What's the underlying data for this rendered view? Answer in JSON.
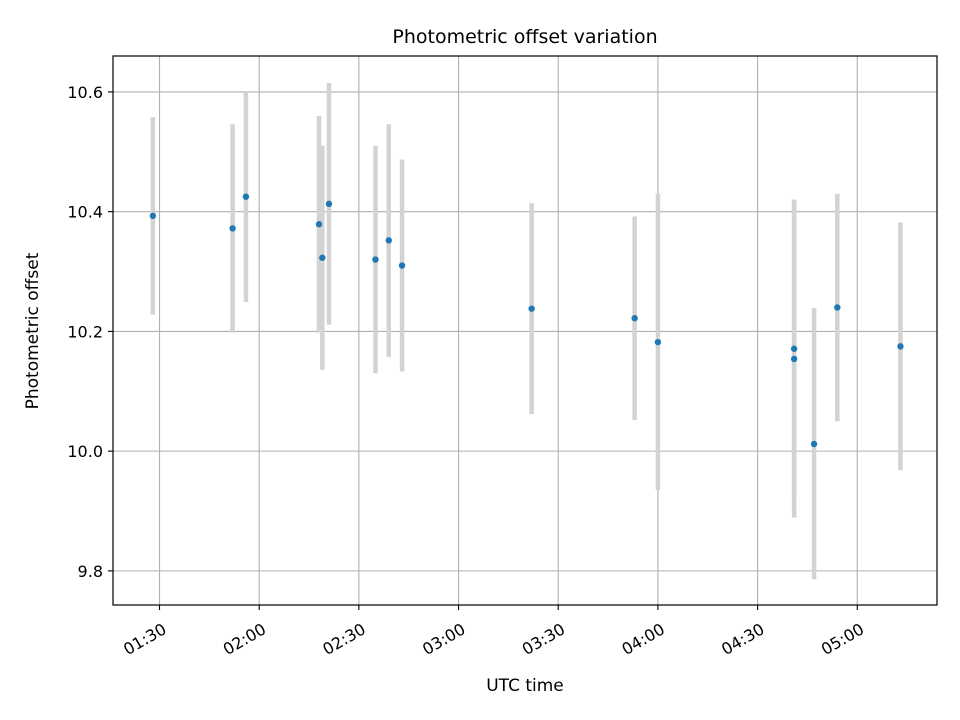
{
  "chart_data": {
    "type": "scatter",
    "title": "Photometric offset variation",
    "xlabel": "UTC time",
    "ylabel": "Photometric offset",
    "grid": true,
    "colors": {
      "point": "#1f77b4",
      "errorbar": "#d3d3d3",
      "grid": "#b0b0b0"
    },
    "xlim": [
      "01:16",
      "05:24"
    ],
    "ylim": [
      9.743,
      10.66
    ],
    "x_ticks": [
      "01:30",
      "02:00",
      "02:30",
      "03:00",
      "03:30",
      "04:00",
      "04:30",
      "05:00"
    ],
    "y_ticks": [
      "9.8",
      "10.0",
      "10.2",
      "10.4",
      "10.6"
    ],
    "points": [
      {
        "x": "01:28",
        "y": 10.393,
        "ylow": 10.228,
        "yhigh": 10.558
      },
      {
        "x": "01:52",
        "y": 10.372,
        "ylow": 10.198,
        "yhigh": 10.546
      },
      {
        "x": "01:56",
        "y": 10.425,
        "ylow": 10.249,
        "yhigh": 10.6
      },
      {
        "x": "02:18",
        "y": 10.379,
        "ylow": 10.198,
        "yhigh": 10.56
      },
      {
        "x": "02:19",
        "y": 10.323,
        "ylow": 10.136,
        "yhigh": 10.51
      },
      {
        "x": "02:21",
        "y": 10.413,
        "ylow": 10.211,
        "yhigh": 10.615
      },
      {
        "x": "02:35",
        "y": 10.32,
        "ylow": 10.13,
        "yhigh": 10.51
      },
      {
        "x": "02:39",
        "y": 10.352,
        "ylow": 10.157,
        "yhigh": 10.546
      },
      {
        "x": "02:43",
        "y": 10.31,
        "ylow": 10.133,
        "yhigh": 10.487
      },
      {
        "x": "03:22",
        "y": 10.238,
        "ylow": 10.062,
        "yhigh": 10.414
      },
      {
        "x": "03:53",
        "y": 10.222,
        "ylow": 10.052,
        "yhigh": 10.392
      },
      {
        "x": "04:00",
        "y": 10.182,
        "ylow": 9.935,
        "yhigh": 10.43
      },
      {
        "x": "04:41",
        "y": 10.154,
        "ylow": 9.889,
        "yhigh": 10.42
      },
      {
        "x": "04:41",
        "y": 10.171,
        "ylow": 9.922,
        "yhigh": 10.42
      },
      {
        "x": "04:47",
        "y": 10.012,
        "ylow": 9.786,
        "yhigh": 10.239
      },
      {
        "x": "04:54",
        "y": 10.24,
        "ylow": 10.05,
        "yhigh": 10.43
      },
      {
        "x": "05:13",
        "y": 10.175,
        "ylow": 9.968,
        "yhigh": 10.382
      }
    ]
  }
}
